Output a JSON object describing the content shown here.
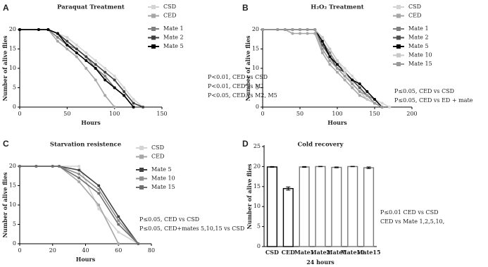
{
  "chart_data": [
    {
      "type": "line",
      "panel_label": "A",
      "title": "Paraquat Treatment",
      "xlabel": "Hours",
      "ylabel": "Number of alive flies",
      "x": [
        0,
        20,
        30,
        40,
        50,
        60,
        70,
        80,
        90,
        100,
        110,
        120,
        130
      ],
      "series": [
        {
          "name": "CSD",
          "color": "#d4d4d4",
          "values": [
            20,
            20,
            20,
            19,
            18,
            16,
            14,
            12,
            10,
            8,
            5,
            2,
            0
          ]
        },
        {
          "name": "CED",
          "color": "#a6a6a6",
          "values": [
            20,
            20,
            20,
            17,
            15,
            13,
            10,
            7,
            3,
            0,
            null,
            null,
            null
          ]
        },
        {
          "name": "Mate 1",
          "color": "#808080",
          "values": [
            20,
            20,
            20,
            18,
            16,
            15,
            13,
            10,
            8,
            5,
            3,
            0,
            null
          ]
        },
        {
          "name": "Mate 2",
          "color": "#404040",
          "values": [
            20,
            20,
            20,
            19,
            17,
            15,
            13,
            11,
            9,
            7,
            4,
            1,
            0
          ]
        },
        {
          "name": "Mate 5",
          "color": "#000000",
          "values": [
            20,
            20,
            20,
            19,
            16,
            14,
            12,
            10,
            7,
            5,
            3,
            0,
            null
          ]
        }
      ],
      "xlim": [
        0,
        150
      ],
      "ylim": [
        0,
        20
      ],
      "xticks": [
        0,
        50,
        100,
        150
      ],
      "yticks": [
        0,
        5,
        10,
        15,
        20
      ],
      "annotations": [
        "P<0.01, CED vs CSD",
        "P<0.01, CED vs M1",
        "P<0.05, CED vs M2, M5"
      ]
    },
    {
      "type": "line",
      "panel_label": "B",
      "title": "H₂O₂ Treatment",
      "xlabel": "Hours",
      "ylabel": "Number of alive flies",
      "x": [
        0,
        20,
        30,
        40,
        50,
        60,
        70,
        80,
        90,
        100,
        110,
        120,
        130,
        140,
        150,
        160,
        170
      ],
      "series": [
        {
          "name": "CSD",
          "color": "#d4d4d4",
          "values": [
            20,
            20,
            20,
            20,
            20,
            20,
            20,
            18,
            15,
            12,
            10,
            8,
            6,
            4,
            2,
            1,
            0
          ]
        },
        {
          "name": "CED",
          "color": "#a6a6a6",
          "values": [
            20,
            20,
            20,
            19,
            19,
            19,
            19,
            14,
            11,
            9,
            7,
            5,
            3,
            2,
            1,
            0,
            null
          ]
        },
        {
          "name": "Mate 1",
          "color": "#808080",
          "values": [
            20,
            20,
            20,
            20,
            20,
            20,
            20,
            17,
            14,
            11,
            9,
            7,
            5,
            3,
            2,
            0,
            null
          ]
        },
        {
          "name": "Mate 2",
          "color": "#505050",
          "values": [
            20,
            20,
            20,
            20,
            20,
            20,
            20,
            16,
            13,
            10,
            9,
            7,
            5,
            3,
            1,
            0,
            null
          ]
        },
        {
          "name": "Mate 5",
          "color": "#000000",
          "values": [
            20,
            20,
            20,
            20,
            20,
            20,
            20,
            17,
            13,
            11,
            9,
            7,
            6,
            4,
            2,
            0,
            null
          ]
        },
        {
          "name": "Mate 10",
          "color": "#c8c8c8",
          "values": [
            20,
            20,
            20,
            20,
            20,
            20,
            20,
            18,
            15,
            12,
            9,
            6,
            4,
            2,
            1,
            0,
            null
          ]
        },
        {
          "name": "Mate 15",
          "color": "#999999",
          "values": [
            20,
            20,
            20,
            20,
            20,
            20,
            20,
            15,
            12,
            10,
            8,
            6,
            4,
            3,
            1,
            0,
            null
          ]
        }
      ],
      "xlim": [
        0,
        200
      ],
      "ylim": [
        0,
        20
      ],
      "xticks": [
        0,
        50,
        100,
        150,
        200
      ],
      "yticks": [
        0,
        5,
        10,
        15,
        20
      ],
      "annotations": [
        "P≤0.05, CED vs CSD",
        "P≤0.05, CED vs ED + mate"
      ]
    },
    {
      "type": "line",
      "panel_label": "C",
      "title": "Starvation resistence",
      "xlabel": "Hours",
      "ylabel": "Number of alive flies",
      "x": [
        0,
        10,
        20,
        24,
        36,
        48,
        60,
        72
      ],
      "series": [
        {
          "name": "CSD",
          "color": "#d4d4d4",
          "values": [
            20,
            20,
            20,
            20,
            20,
            9,
            3,
            0
          ]
        },
        {
          "name": "CED",
          "color": "#a6a6a6",
          "values": [
            20,
            20,
            20,
            20,
            16,
            10,
            0,
            null
          ]
        },
        {
          "name": "Mate 5",
          "color": "#404040",
          "values": [
            20,
            20,
            20,
            20,
            19,
            15,
            7,
            0
          ]
        },
        {
          "name": "Mate 10",
          "color": "#909090",
          "values": [
            20,
            20,
            20,
            20,
            18,
            14,
            6,
            0
          ]
        },
        {
          "name": "Mate 15",
          "color": "#6e6e6e",
          "values": [
            20,
            20,
            20,
            20,
            17,
            13,
            5,
            0
          ]
        }
      ],
      "xlim": [
        0,
        80
      ],
      "ylim": [
        0,
        20
      ],
      "xticks": [
        0,
        20,
        40,
        60,
        80
      ],
      "yticks": [
        0,
        5,
        10,
        15,
        20
      ],
      "annotations": [
        "P≤0.05, CED vs CSD",
        "P≤0.05, CED+mates 5,10,15 vs CSD"
      ]
    },
    {
      "type": "bar",
      "panel_label": "D",
      "title": "Cold recovery",
      "xlabel": "24 hours",
      "ylabel": "Number of alive flies",
      "categories": [
        "CSD",
        "CED",
        "Mate1",
        "Mate2",
        "Mate5",
        "Mate10",
        "Mate15"
      ],
      "values": [
        19.9,
        14.5,
        19.9,
        20,
        19.8,
        20,
        19.7
      ],
      "errors": [
        0.1,
        0.4,
        0.1,
        0.05,
        0.1,
        0.05,
        0.2
      ],
      "colors": [
        "#000000",
        "#000000",
        "#777777",
        "#777777",
        "#777777",
        "#777777",
        "#777777"
      ],
      "ylim": [
        0,
        25
      ],
      "yticks": [
        0,
        5,
        10,
        15,
        20,
        25
      ],
      "annotations": [
        "P≤0.01 CED vs CSD",
        "CED vs Mate 1,2,5,10,"
      ]
    }
  ]
}
